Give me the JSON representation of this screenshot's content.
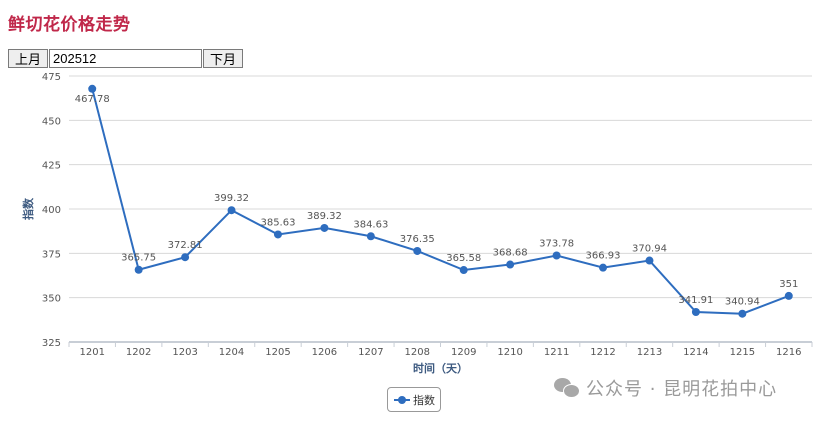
{
  "page": {
    "title": "鲜切花价格走势"
  },
  "controls": {
    "prev_label": "上月",
    "next_label": "下月",
    "month_value": "202512"
  },
  "legend": {
    "label": "指数"
  },
  "watermark": {
    "text": "公众号 · 昆明花拍中心"
  },
  "colors": {
    "title": "#c0284a",
    "series": "#2e6dbf",
    "grid": "#d8d8d8",
    "axis_title": "#3d5a80"
  },
  "chart_data": {
    "type": "line",
    "title": "鲜切花价格走势",
    "xlabel": "时间（天）",
    "ylabel": "指数",
    "categories": [
      "1201",
      "1202",
      "1203",
      "1204",
      "1205",
      "1206",
      "1207",
      "1208",
      "1209",
      "1210",
      "1211",
      "1212",
      "1213",
      "1214",
      "1215",
      "1216"
    ],
    "series": [
      {
        "name": "指数",
        "values": [
          467.78,
          365.75,
          372.81,
          399.32,
          385.63,
          389.32,
          384.63,
          376.35,
          365.58,
          368.68,
          373.78,
          366.93,
          370.94,
          341.91,
          340.94,
          351
        ]
      }
    ],
    "data_labels": [
      "467.78",
      "365.75",
      "372.81",
      "399.32",
      "385.63",
      "389.32",
      "384.63",
      "376.35",
      "365.58",
      "368.68",
      "373.78",
      "366.93",
      "370.94",
      "341.91",
      "340.94",
      "351"
    ],
    "yticks": [
      325,
      350,
      375,
      400,
      425,
      450,
      475
    ],
    "ylim": [
      325,
      475
    ],
    "grid": true,
    "legend_position": "bottom-center"
  }
}
